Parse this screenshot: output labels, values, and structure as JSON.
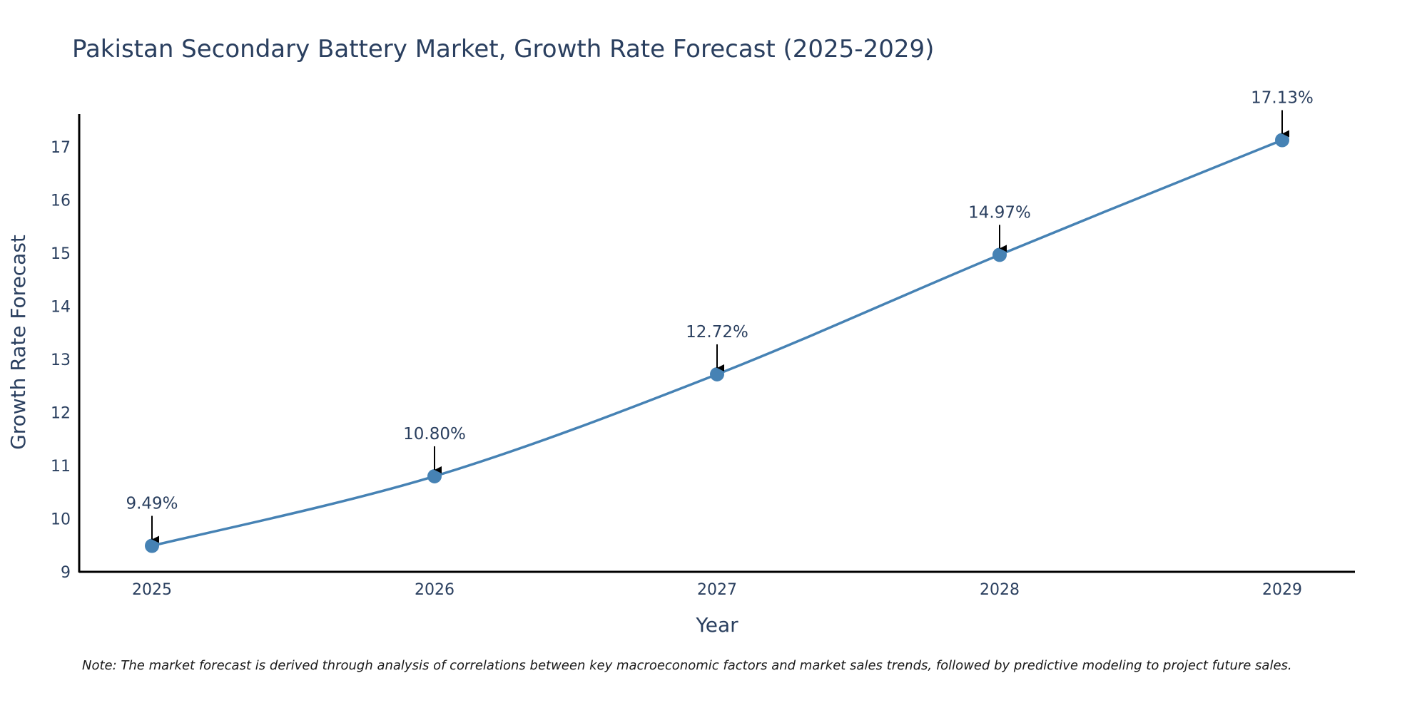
{
  "chart_data": {
    "type": "line",
    "title": "Pakistan Secondary Battery Market, Growth Rate Forecast (2025-2029)",
    "xlabel": "Year",
    "ylabel": "Growth Rate Forecast",
    "x": [
      "2025",
      "2026",
      "2027",
      "2028",
      "2029"
    ],
    "series": [
      {
        "name": "Growth Rate Forecast",
        "values": [
          9.49,
          10.8,
          12.72,
          14.97,
          17.13
        ],
        "labels": [
          "9.49%",
          "10.80%",
          "12.72%",
          "14.97%",
          "17.13%"
        ]
      }
    ],
    "ylim": [
      9,
      17.62
    ],
    "yticks": [
      9,
      10,
      11,
      12,
      13,
      14,
      15,
      16,
      17
    ],
    "grid": false,
    "line_color": "#4682b4",
    "marker_color": "#4682b4",
    "annotation_color": "#000000",
    "note": "Note: The market forecast is derived through analysis of correlations between key macroeconomic factors and market sales trends, followed by predictive modeling to project future sales."
  }
}
